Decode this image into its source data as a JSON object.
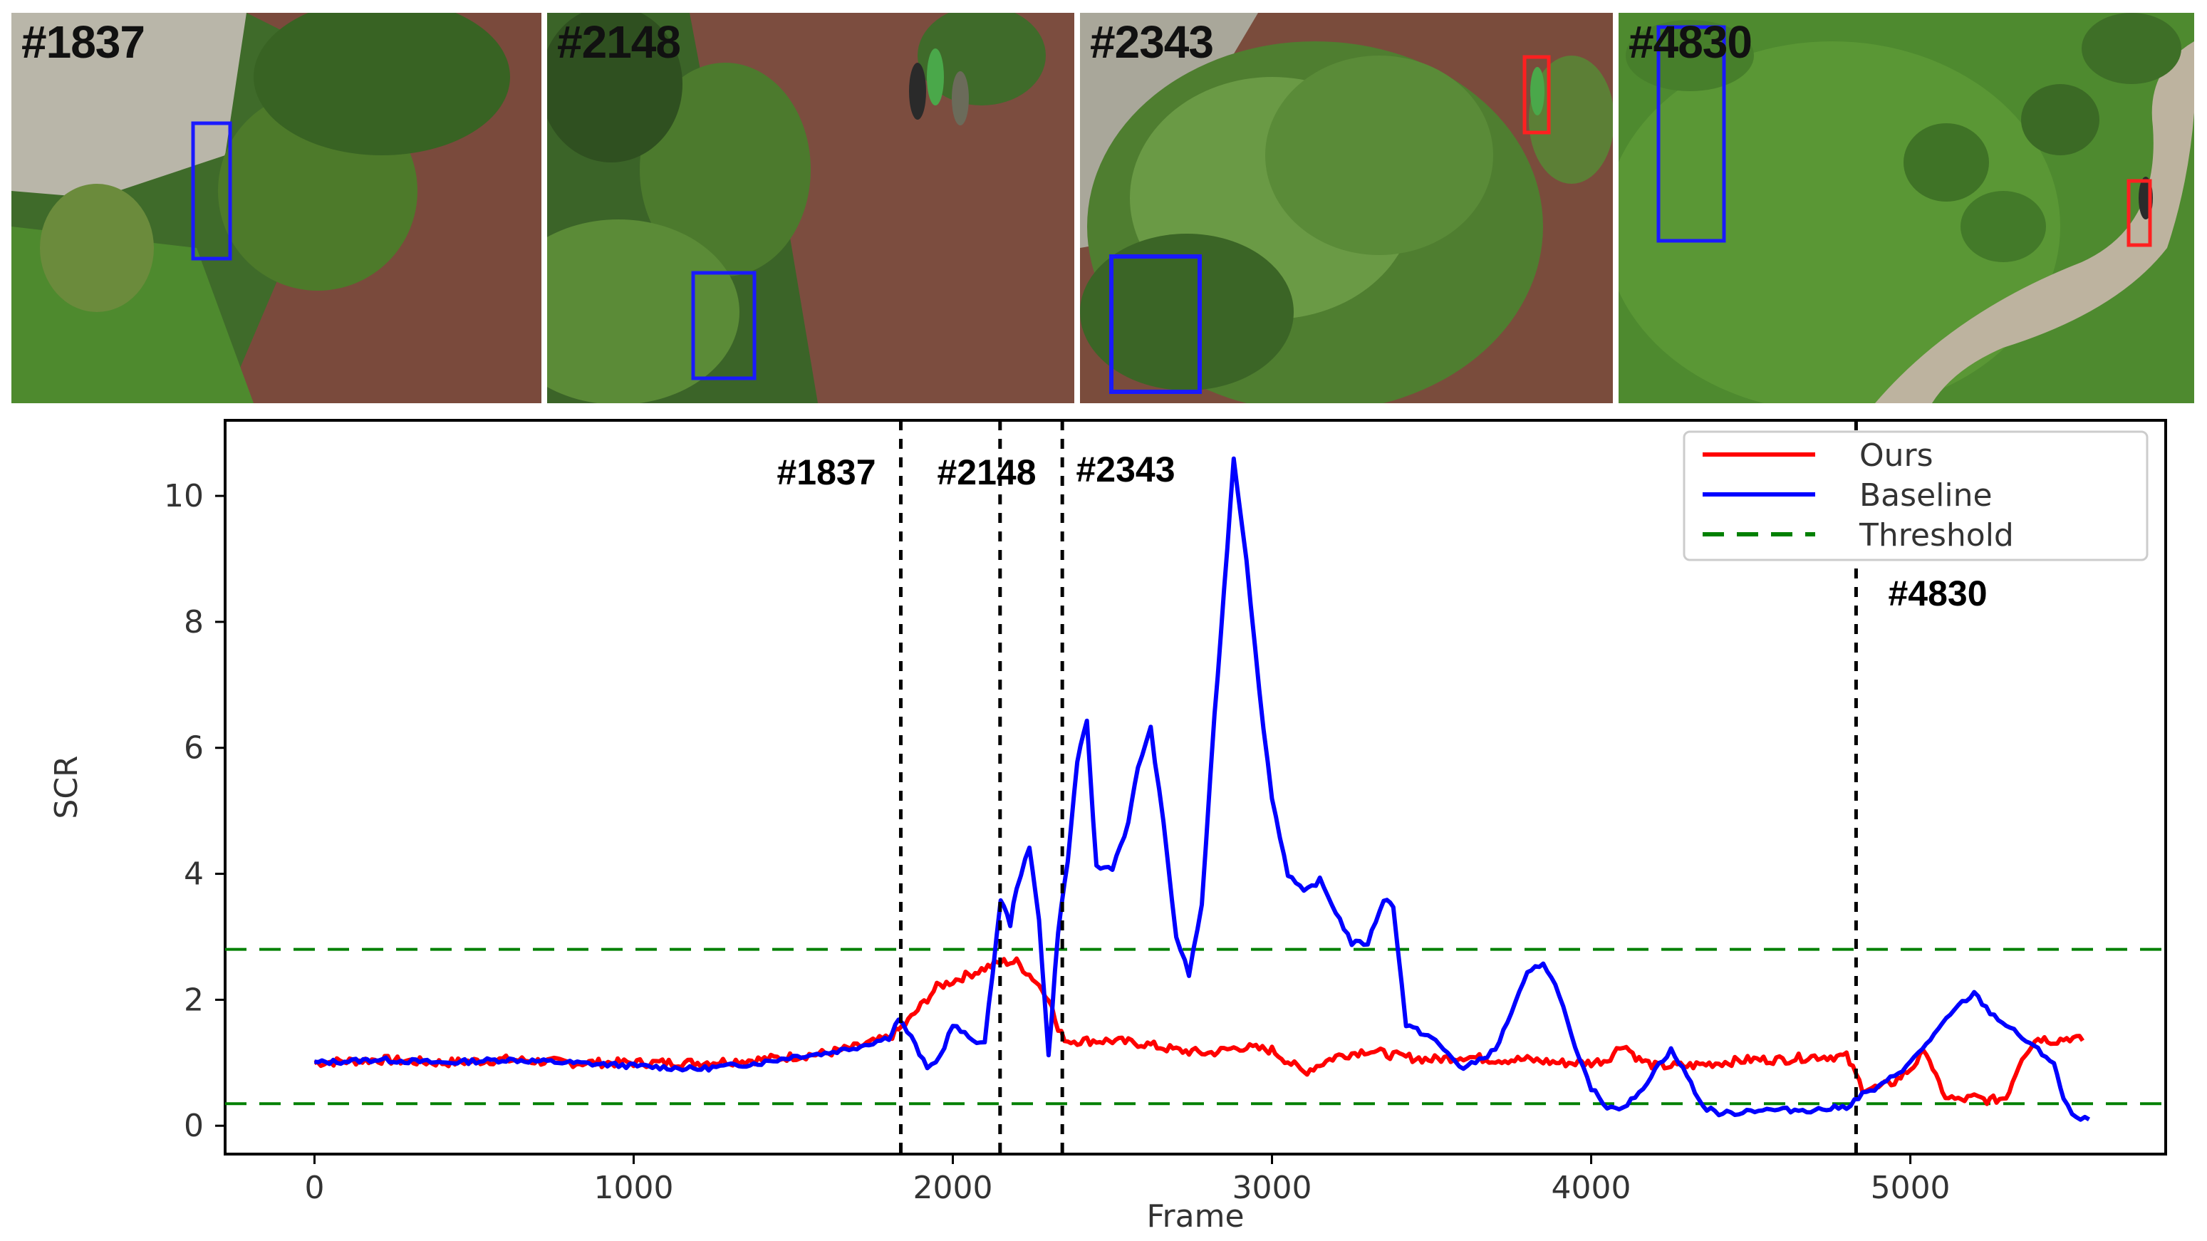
{
  "frames": [
    {
      "label": "#1837",
      "scene": "aerial-grass-path-tree",
      "boxes": [
        "blue"
      ]
    },
    {
      "label": "#2148",
      "scene": "aerial-walkway-pedestrians",
      "boxes": [
        "blue"
      ]
    },
    {
      "label": "#2343",
      "scene": "aerial-dense-tree-canopy",
      "boxes": [
        "blue",
        "red"
      ]
    },
    {
      "label": "#4830",
      "scene": "aerial-park-lawn-path",
      "boxes": [
        "blue",
        "red"
      ]
    }
  ],
  "colors": {
    "ours": "#ff0000",
    "baseline": "#0000ff",
    "threshold": "#008000",
    "marker": "#000000"
  },
  "chart_data": {
    "type": "line",
    "xlabel": "Frame",
    "ylabel": "SCR",
    "xlim": [
      -280,
      5800
    ],
    "ylim": [
      -0.45,
      11.2
    ],
    "xticks": [
      0,
      1000,
      2000,
      3000,
      4000,
      5000
    ],
    "yticks": [
      0,
      2,
      4,
      6,
      8,
      10
    ],
    "legend_position": "top-right",
    "thresholds": [
      2.8,
      0.35
    ],
    "markers": [
      {
        "frame": 1837,
        "label": "#1837"
      },
      {
        "frame": 2148,
        "label": "#2148"
      },
      {
        "frame": 2343,
        "label": "#2343"
      },
      {
        "frame": 4830,
        "label": "#4830"
      }
    ],
    "series": [
      {
        "name": "Ours",
        "x": [
          0,
          200,
          400,
          600,
          800,
          1000,
          1200,
          1400,
          1500,
          1600,
          1700,
          1800,
          1850,
          1900,
          1950,
          2000,
          2050,
          2100,
          2150,
          2200,
          2250,
          2300,
          2330,
          2360,
          2400,
          2500,
          2600,
          2700,
          2800,
          2900,
          3000,
          3100,
          3200,
          3300,
          3350,
          3400,
          3500,
          3600,
          3700,
          3800,
          3900,
          4000,
          4050,
          4100,
          4150,
          4200,
          4300,
          4400,
          4500,
          4600,
          4700,
          4800,
          4850,
          4900,
          4950,
          5000,
          5050,
          5100,
          5150,
          5200,
          5250,
          5300,
          5350,
          5400,
          5450,
          5500,
          5540
        ],
        "y": [
          1.0,
          1.05,
          1.0,
          1.05,
          1.0,
          1.0,
          1.0,
          1.05,
          1.1,
          1.15,
          1.25,
          1.4,
          1.6,
          1.9,
          2.2,
          2.3,
          2.4,
          2.5,
          2.6,
          2.6,
          2.35,
          2.05,
          1.5,
          1.35,
          1.35,
          1.35,
          1.3,
          1.2,
          1.15,
          1.25,
          1.2,
          0.85,
          1.1,
          1.2,
          1.15,
          1.1,
          1.05,
          1.1,
          1.05,
          1.05,
          1.0,
          1.0,
          1.05,
          1.3,
          1.05,
          0.95,
          0.95,
          1.0,
          1.05,
          1.05,
          1.1,
          1.1,
          0.6,
          0.6,
          0.7,
          0.9,
          1.2,
          0.5,
          0.4,
          0.45,
          0.4,
          0.45,
          1.1,
          1.4,
          1.35,
          1.4,
          1.35
        ]
      },
      {
        "name": "Baseline",
        "x": [
          0,
          200,
          400,
          600,
          800,
          1000,
          1200,
          1400,
          1500,
          1600,
          1700,
          1800,
          1830,
          1870,
          1920,
          1960,
          2000,
          2050,
          2100,
          2150,
          2180,
          2200,
          2240,
          2270,
          2300,
          2330,
          2360,
          2390,
          2420,
          2450,
          2500,
          2550,
          2580,
          2620,
          2660,
          2700,
          2740,
          2780,
          2820,
          2850,
          2880,
          2920,
          2960,
          3000,
          3050,
          3100,
          3150,
          3200,
          3250,
          3300,
          3350,
          3380,
          3420,
          3500,
          3600,
          3700,
          3750,
          3800,
          3850,
          3900,
          3950,
          4000,
          4050,
          4100,
          4150,
          4200,
          4250,
          4300,
          4350,
          4400,
          4450,
          4500,
          4600,
          4700,
          4800,
          4850,
          4900,
          4950,
          5000,
          5050,
          5100,
          5150,
          5200,
          5250,
          5300,
          5350,
          5400,
          5450,
          5480,
          5520,
          5560
        ],
        "y": [
          1.0,
          1.05,
          1.0,
          1.05,
          1.0,
          0.95,
          0.9,
          1.0,
          1.1,
          1.15,
          1.25,
          1.4,
          1.7,
          1.4,
          0.9,
          1.1,
          1.6,
          1.4,
          1.3,
          3.6,
          3.2,
          3.8,
          4.4,
          3.3,
          1.1,
          3.1,
          4.2,
          5.8,
          6.4,
          4.1,
          4.1,
          4.8,
          5.7,
          6.3,
          4.8,
          3.0,
          2.4,
          3.5,
          6.5,
          8.5,
          10.6,
          9.0,
          6.9,
          5.2,
          4.0,
          3.7,
          3.9,
          3.4,
          2.9,
          2.9,
          3.6,
          3.5,
          1.6,
          1.4,
          0.9,
          1.2,
          1.8,
          2.4,
          2.6,
          2.1,
          1.2,
          0.6,
          0.3,
          0.3,
          0.5,
          0.9,
          1.2,
          0.8,
          0.3,
          0.2,
          0.2,
          0.25,
          0.25,
          0.25,
          0.3,
          0.5,
          0.6,
          0.8,
          1.0,
          1.3,
          1.6,
          1.9,
          2.1,
          1.8,
          1.6,
          1.4,
          1.2,
          1.0,
          0.4,
          0.1,
          0.1
        ]
      },
      {
        "name": "Threshold",
        "x": [
          -280,
          5800
        ],
        "y": [
          2.8,
          2.8
        ]
      }
    ]
  }
}
